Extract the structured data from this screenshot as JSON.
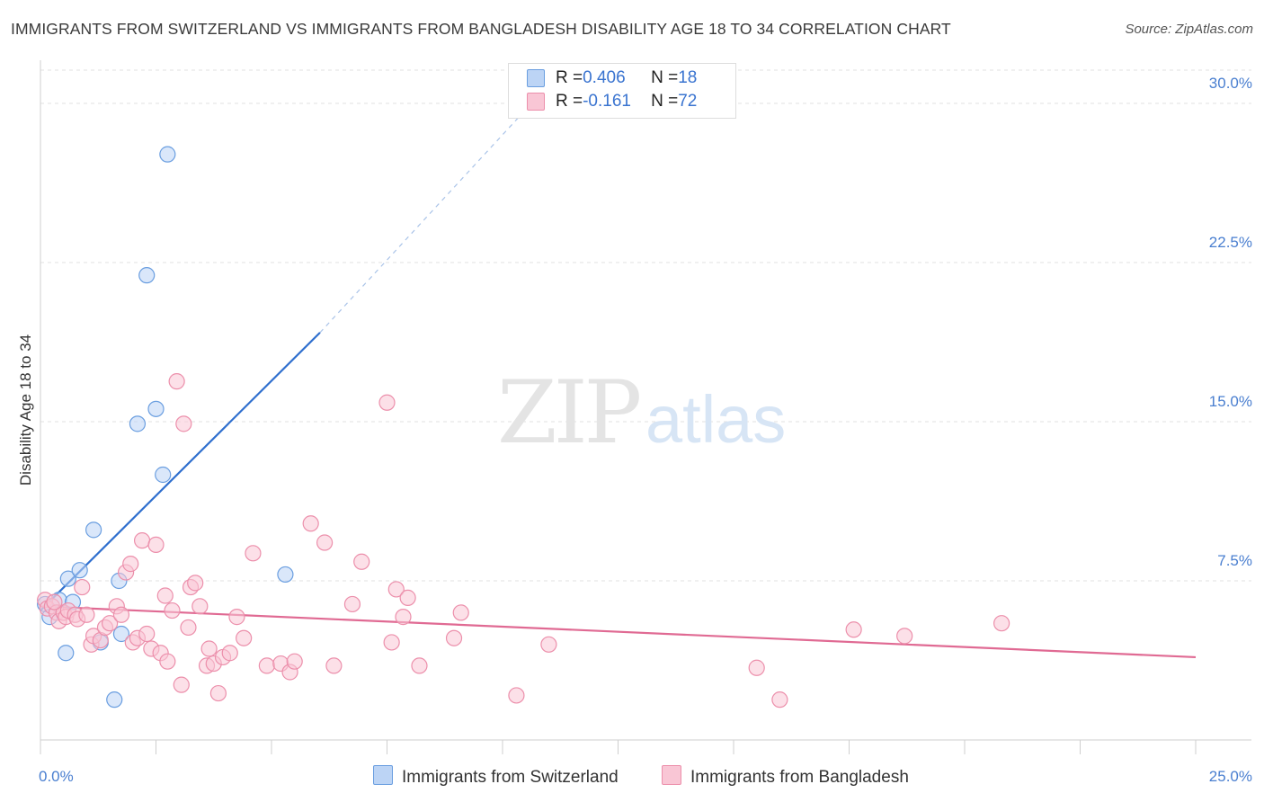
{
  "title": "IMMIGRANTS FROM SWITZERLAND VS IMMIGRANTS FROM BANGLADESH DISABILITY AGE 18 TO 34 CORRELATION CHART",
  "source": "Source: ZipAtlas.com",
  "watermark": {
    "zip": "ZIP",
    "atlas": "atlas"
  },
  "legend_top": [
    {
      "r_label": "R = ",
      "r_value": "0.406",
      "n_label": "N = ",
      "n_value": "18",
      "color": "#a9c8f2",
      "border": "#6a9ee0"
    },
    {
      "r_label": "R = ",
      "r_value": "-0.161",
      "n_label": "N = ",
      "n_value": "72",
      "color": "#f8bfd0",
      "border": "#ec8fab"
    }
  ],
  "legend_bottom": [
    {
      "label": "Immigrants from Switzerland",
      "color": "#a9c8f2",
      "border": "#6a9ee0"
    },
    {
      "label": "Immigrants from Bangladesh",
      "color": "#f8bfd0",
      "border": "#ec8fab"
    }
  ],
  "chart_data": {
    "type": "scatter",
    "title": "IMMIGRANTS FROM SWITZERLAND VS IMMIGRANTS FROM BANGLADESH DISABILITY AGE 18 TO 34 CORRELATION CHART",
    "xlabel": "",
    "ylabel": "Disability Age 18 to 34",
    "xlim": [
      0,
      25
    ],
    "ylim": [
      0,
      30
    ],
    "x_ticks": [
      {
        "value": 0,
        "label": "0.0%"
      },
      {
        "value": 25,
        "label": "25.0%"
      }
    ],
    "y_ticks": [
      {
        "value": 7.5,
        "label": "7.5%"
      },
      {
        "value": 15,
        "label": "15.0%"
      },
      {
        "value": 22.5,
        "label": "22.5%"
      },
      {
        "value": 30,
        "label": "30.0%"
      }
    ],
    "grid": "horizontal dashed",
    "legend_position": "top-center",
    "series": [
      {
        "name": "Immigrants from Switzerland",
        "color": "#6a9ee0",
        "fill": "#bcd4f5",
        "points": [
          [
            0.1,
            6.4
          ],
          [
            0.2,
            5.8
          ],
          [
            0.4,
            6.6
          ],
          [
            0.55,
            4.1
          ],
          [
            0.6,
            7.6
          ],
          [
            0.7,
            6.5
          ],
          [
            0.85,
            8.0
          ],
          [
            1.15,
            9.9
          ],
          [
            1.3,
            4.6
          ],
          [
            1.6,
            1.9
          ],
          [
            1.7,
            7.5
          ],
          [
            1.75,
            5.0
          ],
          [
            2.1,
            14.9
          ],
          [
            2.3,
            21.9
          ],
          [
            2.5,
            15.6
          ],
          [
            2.65,
            12.5
          ],
          [
            2.75,
            27.6
          ],
          [
            5.3,
            7.8
          ]
        ],
        "trend": {
          "x": [
            0,
            6.05
          ],
          "y": [
            6.1,
            19.2
          ],
          "dashed_to": [
            10.5,
            29.7
          ]
        }
      },
      {
        "name": "Immigrants from Bangladesh",
        "color": "#ec8fab",
        "fill": "#f9c6d5",
        "points": [
          [
            0.1,
            6.6
          ],
          [
            0.15,
            6.2
          ],
          [
            0.25,
            6.3
          ],
          [
            0.35,
            6.0
          ],
          [
            0.4,
            5.6
          ],
          [
            0.5,
            6.0
          ],
          [
            0.55,
            5.8
          ],
          [
            0.6,
            6.1
          ],
          [
            0.75,
            5.9
          ],
          [
            0.8,
            5.7
          ],
          [
            0.9,
            7.2
          ],
          [
            1.0,
            5.9
          ],
          [
            1.1,
            4.5
          ],
          [
            1.15,
            4.9
          ],
          [
            1.3,
            4.7
          ],
          [
            1.4,
            5.3
          ],
          [
            1.5,
            5.5
          ],
          [
            1.65,
            6.3
          ],
          [
            1.75,
            5.9
          ],
          [
            1.85,
            7.9
          ],
          [
            1.95,
            8.3
          ],
          [
            2.0,
            4.6
          ],
          [
            2.1,
            4.8
          ],
          [
            2.2,
            9.4
          ],
          [
            2.3,
            5.0
          ],
          [
            2.4,
            4.3
          ],
          [
            2.5,
            9.2
          ],
          [
            2.6,
            4.1
          ],
          [
            2.7,
            6.8
          ],
          [
            2.75,
            3.7
          ],
          [
            2.85,
            6.1
          ],
          [
            2.95,
            16.9
          ],
          [
            3.05,
            2.6
          ],
          [
            3.1,
            14.9
          ],
          [
            3.2,
            5.3
          ],
          [
            3.25,
            7.2
          ],
          [
            3.35,
            7.4
          ],
          [
            3.45,
            6.3
          ],
          [
            3.6,
            3.5
          ],
          [
            3.65,
            4.3
          ],
          [
            3.75,
            3.6
          ],
          [
            3.85,
            2.2
          ],
          [
            3.95,
            3.9
          ],
          [
            4.1,
            4.1
          ],
          [
            4.25,
            5.8
          ],
          [
            4.4,
            4.8
          ],
          [
            4.6,
            8.8
          ],
          [
            4.9,
            3.5
          ],
          [
            5.2,
            3.6
          ],
          [
            5.4,
            3.2
          ],
          [
            5.5,
            3.7
          ],
          [
            5.85,
            10.2
          ],
          [
            6.15,
            9.3
          ],
          [
            6.35,
            3.5
          ],
          [
            6.75,
            6.4
          ],
          [
            6.95,
            8.4
          ],
          [
            7.5,
            15.9
          ],
          [
            7.6,
            4.6
          ],
          [
            7.7,
            7.1
          ],
          [
            7.85,
            5.8
          ],
          [
            7.95,
            6.7
          ],
          [
            8.2,
            3.5
          ],
          [
            8.95,
            4.8
          ],
          [
            9.1,
            6.0
          ],
          [
            10.3,
            2.1
          ],
          [
            11.0,
            4.5
          ],
          [
            15.5,
            3.4
          ],
          [
            16.0,
            1.9
          ],
          [
            17.6,
            5.2
          ],
          [
            18.7,
            4.9
          ],
          [
            20.8,
            5.5
          ],
          [
            0.3,
            6.5
          ]
        ],
        "trend": {
          "x": [
            0,
            25
          ],
          "y": [
            6.3,
            3.9
          ]
        }
      }
    ]
  }
}
